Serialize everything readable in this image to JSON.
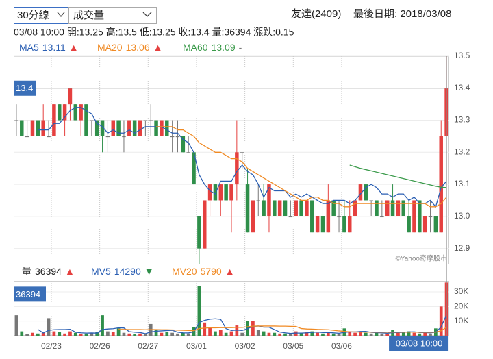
{
  "header": {
    "period_select": "30分線",
    "indicator_select": "成交量",
    "stock": "友達(2409)",
    "last_date": "最後日期: 2018/03/08",
    "info_line": "03/08 10:00 開:13.25 高:13.5 低:13.25 收:13.4 量:36394 漲跌:0.15"
  },
  "chart_data": [
    {
      "type": "candlestick",
      "up_color": "#e5403f",
      "down_color": "#2f8f4a",
      "flat_color": "#777777",
      "grid": true,
      "watermark": "©Yahoo奇摩股市",
      "last_price": 13.4,
      "ylim": [
        12.85,
        13.5
      ],
      "yticks": [
        12.9,
        {
          "value": 13,
          "label": "13.0"
        },
        13.1,
        13.2,
        13.3,
        13.4,
        13.5
      ],
      "categories": [
        null,
        null,
        null,
        null,
        null,
        null,
        null,
        "02/23",
        null,
        null,
        null,
        null,
        null,
        null,
        null,
        null,
        "02/26",
        null,
        null,
        null,
        null,
        null,
        null,
        null,
        null,
        "02/27",
        null,
        null,
        null,
        null,
        null,
        null,
        null,
        null,
        "03/01",
        null,
        null,
        null,
        null,
        null,
        null,
        null,
        null,
        "03/02",
        null,
        null,
        null,
        null,
        null,
        null,
        null,
        null,
        "03/05",
        null,
        null,
        null,
        null,
        null,
        null,
        null,
        null,
        "03/06",
        null,
        null,
        null,
        null,
        null,
        null,
        null,
        null,
        null,
        null,
        null,
        null,
        null,
        null,
        null,
        null,
        null,
        null,
        null
      ],
      "open": [
        13.3,
        13.3,
        13.25,
        13.25,
        13.3,
        13.25,
        13.25,
        13.25,
        13.35,
        13.3,
        13.35,
        13.35,
        13.3,
        13.35,
        13.3,
        13.3,
        13.3,
        13.25,
        13.25,
        13.3,
        13.25,
        13.25,
        13.3,
        13.25,
        13.3,
        13.3,
        13.3,
        13.25,
        13.3,
        13.25,
        13.25,
        13.25,
        13.2,
        13.2,
        13.0,
        12.9,
        13.05,
        13.1,
        13.05,
        13.1,
        13.05,
        13.1,
        13.2,
        13.1,
        12.95,
        13.05,
        13.05,
        13.0,
        13.05,
        13.0,
        13.05,
        13.0,
        13.0,
        13.05,
        13.0,
        13.05,
        12.95,
        13.0,
        12.95,
        13.05,
        13.0,
        13.0,
        12.95,
        13.0,
        13.05,
        13.1,
        13.05,
        13.05,
        13.0,
        13.0,
        13.05,
        13.0,
        13.05,
        13.0,
        12.95,
        13.05,
        12.95,
        13.0,
        13.0,
        12.95,
        13.25
      ],
      "high": [
        13.35,
        13.3,
        13.3,
        13.3,
        13.3,
        13.35,
        13.3,
        13.35,
        13.35,
        13.35,
        13.4,
        13.35,
        13.35,
        13.35,
        13.3,
        13.3,
        13.3,
        13.3,
        13.3,
        13.3,
        13.3,
        13.3,
        13.3,
        13.3,
        13.3,
        13.35,
        13.3,
        13.3,
        13.3,
        13.3,
        13.3,
        13.25,
        13.25,
        13.2,
        13.0,
        13.05,
        13.1,
        13.1,
        13.1,
        13.1,
        13.1,
        13.3,
        13.2,
        13.15,
        13.05,
        13.1,
        13.1,
        13.1,
        13.05,
        13.05,
        13.05,
        13.05,
        13.05,
        13.05,
        13.05,
        13.05,
        13.0,
        13.05,
        13.1,
        13.05,
        13.05,
        13.05,
        13.05,
        13.05,
        13.1,
        13.1,
        13.05,
        13.05,
        13.05,
        13.05,
        13.1,
        13.05,
        13.05,
        13.05,
        13.05,
        13.05,
        13.0,
        13.05,
        13.0,
        13.3,
        13.5
      ],
      "low": [
        13.25,
        13.25,
        13.25,
        13.25,
        13.25,
        13.25,
        13.25,
        13.25,
        13.3,
        13.25,
        13.3,
        13.3,
        13.25,
        13.25,
        13.25,
        13.25,
        13.2,
        13.2,
        13.25,
        13.25,
        13.2,
        13.25,
        13.25,
        13.25,
        13.25,
        13.25,
        13.25,
        13.25,
        13.25,
        13.2,
        13.2,
        13.2,
        13.2,
        13.1,
        12.85,
        12.9,
        13.0,
        13.05,
        13.0,
        13.05,
        12.95,
        13.05,
        13.15,
        12.95,
        12.95,
        13.0,
        13.0,
        12.95,
        13.0,
        13.0,
        13.0,
        13.0,
        13.0,
        13.0,
        13.0,
        12.95,
        12.95,
        12.95,
        12.95,
        13.0,
        12.95,
        12.95,
        12.95,
        13.0,
        13.05,
        13.05,
        13.0,
        13.0,
        13.0,
        13.0,
        13.0,
        13.0,
        13.0,
        12.95,
        12.95,
        12.95,
        12.95,
        12.95,
        12.95,
        12.95,
        13.25
      ],
      "close": [
        13.3,
        13.25,
        13.25,
        13.3,
        13.25,
        13.3,
        13.25,
        13.35,
        13.3,
        13.35,
        13.4,
        13.3,
        13.35,
        13.25,
        13.3,
        13.25,
        13.25,
        13.25,
        13.3,
        13.25,
        13.25,
        13.3,
        13.25,
        13.3,
        13.3,
        13.3,
        13.25,
        13.3,
        13.25,
        13.25,
        13.25,
        13.2,
        13.2,
        13.1,
        12.9,
        13.05,
        13.1,
        13.05,
        13.1,
        13.05,
        13.1,
        13.2,
        13.2,
        12.95,
        13.05,
        13.05,
        13.0,
        13.1,
        13.0,
        13.05,
        13.0,
        13.0,
        13.05,
        13.0,
        13.05,
        12.95,
        13.0,
        12.95,
        13.05,
        13.0,
        13.0,
        12.95,
        13.0,
        13.05,
        13.1,
        13.05,
        13.05,
        13.0,
        13.0,
        13.05,
        13.0,
        13.05,
        13.0,
        12.95,
        13.05,
        12.95,
        13.0,
        13.0,
        12.95,
        13.25,
        13.4
      ],
      "series": [
        {
          "name": "MA5",
          "color": "#2b5fb3",
          "legend_value": 13.11,
          "legend_trend": "▲",
          "trend_color": "#e5403f",
          "values": [
            null,
            null,
            null,
            null,
            13.27,
            13.27,
            13.27,
            13.29,
            13.29,
            13.31,
            13.33,
            13.34,
            13.34,
            13.33,
            13.32,
            13.29,
            13.28,
            13.26,
            13.27,
            13.26,
            13.26,
            13.27,
            13.26,
            13.27,
            13.28,
            13.28,
            13.28,
            13.28,
            13.27,
            13.26,
            13.26,
            13.24,
            13.23,
            13.2,
            13.13,
            13.1,
            13.08,
            13.07,
            13.11,
            13.11,
            13.11,
            13.14,
            13.16,
            13.14,
            13.13,
            13.1,
            13.06,
            13.09,
            13.08,
            13.08,
            13.08,
            13.06,
            13.07,
            13.06,
            13.07,
            13.06,
            13.05,
            13.04,
            13.04,
            13.05,
            13.05,
            13.05,
            13.04,
            13.05,
            13.07,
            13.09,
            13.1,
            13.09,
            13.07,
            13.07,
            13.06,
            13.07,
            13.07,
            13.05,
            13.06,
            13.04,
            13.04,
            13.05,
            13.03,
            13.09,
            13.11
          ]
        },
        {
          "name": "MA20",
          "color": "#f08a24",
          "legend_value": 13.06,
          "legend_trend": "▲",
          "trend_color": "#e5403f",
          "values": [
            null,
            null,
            null,
            null,
            null,
            null,
            null,
            null,
            null,
            null,
            null,
            null,
            null,
            null,
            null,
            null,
            null,
            null,
            null,
            null,
            null,
            null,
            null,
            null,
            null,
            null,
            13.28,
            13.28,
            13.28,
            13.28,
            13.27,
            13.27,
            13.26,
            13.25,
            13.23,
            13.22,
            13.21,
            13.2,
            13.2,
            13.19,
            13.18,
            13.18,
            13.17,
            13.15,
            13.14,
            13.13,
            13.12,
            13.11,
            13.1,
            13.09,
            13.08,
            13.07,
            13.06,
            13.05,
            13.05,
            13.06,
            13.06,
            13.05,
            13.05,
            13.04,
            13.04,
            13.03,
            13.03,
            13.04,
            13.04,
            13.04,
            13.04,
            13.04,
            13.04,
            13.04,
            13.04,
            13.04,
            13.04,
            13.04,
            13.04,
            13.04,
            13.04,
            13.03,
            13.03,
            13.04,
            13.06
          ]
        },
        {
          "name": "MA60",
          "color": "#3a9a4a",
          "legend_value": 13.09,
          "legend_trend": "-",
          "trend_color": "#777777",
          "values": [
            null,
            null,
            null,
            null,
            null,
            null,
            null,
            null,
            null,
            null,
            null,
            null,
            null,
            null,
            null,
            null,
            null,
            null,
            null,
            null,
            null,
            null,
            null,
            null,
            null,
            null,
            null,
            null,
            null,
            null,
            null,
            null,
            null,
            null,
            null,
            null,
            null,
            null,
            null,
            null,
            null,
            null,
            null,
            null,
            null,
            null,
            null,
            null,
            null,
            null,
            null,
            null,
            null,
            null,
            null,
            null,
            null,
            null,
            null,
            null,
            null,
            null,
            13.16,
            13.155,
            13.15,
            13.146,
            13.142,
            13.138,
            13.134,
            13.13,
            13.126,
            13.122,
            13.118,
            13.114,
            13.11,
            13.106,
            13.102,
            13.098,
            13.094,
            13.091,
            13.09
          ]
        }
      ]
    },
    {
      "type": "volume_bar",
      "grid": true,
      "last_volume": 36394,
      "crosshair_label": "03/08 10:00",
      "ylim": [
        0,
        37500
      ],
      "yticks": [
        {
          "value": 10000,
          "label": "10K"
        },
        {
          "value": 20000,
          "label": "20K"
        },
        {
          "value": 30000,
          "label": "30K"
        }
      ],
      "series": [
        {
          "name": "量",
          "mark": "bar",
          "legend_color": "#222222",
          "legend_value": 36394,
          "legend_trend": "▲",
          "trend_color": "#e5403f",
          "values": [
            14000,
            3000,
            1000,
            2000,
            1500,
            2000,
            12000,
            3000,
            2500,
            1500,
            3000,
            2000,
            1000,
            1500,
            2000,
            2500,
            14000,
            3000,
            2500,
            5000,
            2000,
            1500,
            1000,
            1500,
            1000,
            8000,
            4000,
            2000,
            2500,
            2000,
            1500,
            2000,
            1500,
            6000,
            34000,
            9000,
            6000,
            3000,
            4000,
            2000,
            3000,
            7000,
            2000,
            10000,
            10000,
            4000,
            3000,
            2000,
            2000,
            1500,
            1500,
            1000,
            3000,
            2000,
            2500,
            3000,
            2000,
            1500,
            2000,
            1500,
            1500,
            5000,
            3000,
            2000,
            3000,
            2000,
            1500,
            2000,
            1500,
            1500,
            4000,
            2000,
            2500,
            3000,
            2000,
            1500,
            2000,
            1500,
            5000,
            20000,
            36394
          ]
        },
        {
          "name": "MV5",
          "mark": "line",
          "color": "#2b5fb3",
          "legend_value": 14290,
          "legend_trend": "▼",
          "trend_color": "#2f8f4a",
          "values": [
            null,
            null,
            null,
            null,
            4300,
            1900,
            3700,
            4100,
            4200,
            4200,
            4400,
            2400,
            2000,
            1800,
            1900,
            1800,
            4200,
            4600,
            4800,
            5400,
            5300,
            2800,
            2400,
            2200,
            1400,
            2600,
            3100,
            3300,
            3500,
            3700,
            2400,
            2000,
            1900,
            2600,
            9000,
            10500,
            11300,
            11600,
            11200,
            4800,
            3600,
            3800,
            3600,
            4800,
            6400,
            6600,
            5800,
            5800,
            4200,
            2500,
            2000,
            1600,
            1800,
            1800,
            2000,
            2300,
            2500,
            2200,
            2200,
            2000,
            1700,
            2300,
            2600,
            2600,
            2900,
            3000,
            2300,
            2100,
            2000,
            1700,
            2100,
            2200,
            2300,
            2600,
            2700,
            2200,
            2200,
            2000,
            2400,
            6000,
            14290
          ]
        },
        {
          "name": "MV20",
          "mark": "line",
          "color": "#f08a24",
          "legend_value": 5790,
          "legend_trend": "▲",
          "trend_color": "#e5403f",
          "values": [
            null,
            null,
            null,
            null,
            null,
            null,
            null,
            null,
            null,
            null,
            null,
            null,
            null,
            null,
            null,
            null,
            null,
            null,
            null,
            4300,
            4300,
            4200,
            4200,
            4200,
            4100,
            4200,
            4200,
            4100,
            4100,
            4000,
            3800,
            3700,
            3600,
            3400,
            4900,
            5200,
            5400,
            5400,
            5500,
            5500,
            5500,
            5700,
            5700,
            6100,
            6500,
            6600,
            6600,
            6600,
            6600,
            6500,
            6500,
            6400,
            6300,
            4900,
            4600,
            4500,
            4300,
            4200,
            4100,
            3700,
            3300,
            3000,
            2700,
            2600,
            2500,
            2500,
            2500,
            2500,
            2500,
            2400,
            2500,
            2500,
            2500,
            2500,
            2500,
            2400,
            2400,
            2400,
            2500,
            3400,
            5790
          ]
        }
      ]
    }
  ]
}
